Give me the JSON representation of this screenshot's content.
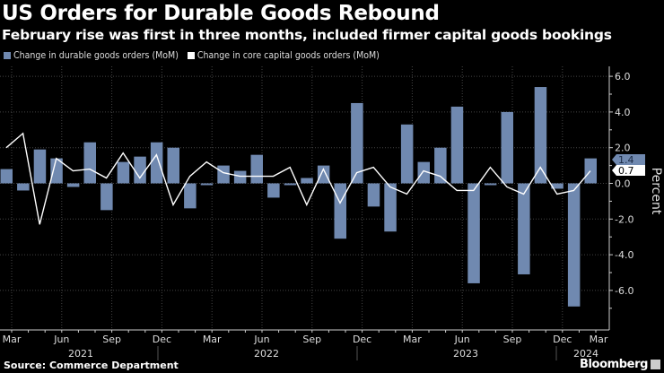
{
  "title": "US Orders for Durable Goods Rebound",
  "subtitle": "February rise was first in three months, included firmer capital goods bookings",
  "source": "Source: Commerce Department",
  "brand": "Bloomberg",
  "chart_data": {
    "type": "bar+line",
    "ylabel": "Percent",
    "ylim": [
      -8,
      6.6
    ],
    "yticks": [
      "6.0",
      "4.0",
      "2.0",
      "0.0",
      "-2.0",
      "-4.0",
      "-6.0"
    ],
    "ytick_values": [
      6,
      4,
      2,
      0,
      -2,
      -4,
      -6
    ],
    "grid": true,
    "legend_position": "top-left",
    "x": [
      "2021-03",
      "2021-04",
      "2021-05",
      "2021-06",
      "2021-07",
      "2021-08",
      "2021-09",
      "2021-10",
      "2021-11",
      "2021-12",
      "2022-01",
      "2022-02",
      "2022-03",
      "2022-04",
      "2022-05",
      "2022-06",
      "2022-07",
      "2022-08",
      "2022-09",
      "2022-10",
      "2022-11",
      "2022-12",
      "2023-01",
      "2023-02",
      "2023-03",
      "2023-04",
      "2023-05",
      "2023-06",
      "2023-07",
      "2023-08",
      "2023-09",
      "2023-10",
      "2023-11",
      "2023-12",
      "2024-01",
      "2024-02"
    ],
    "xtick_labels": [
      "Mar",
      "Jun",
      "Sep",
      "Dec",
      "Mar",
      "Jun",
      "Sep",
      "Dec",
      "Mar",
      "Jun",
      "Sep",
      "Dec",
      "Mar"
    ],
    "year_labels": [
      "2021",
      "2022",
      "2023",
      "2024"
    ],
    "series": [
      {
        "name": "Change in durable goods orders (MoM)",
        "kind": "bar",
        "color": "#7089b0",
        "values": [
          0.8,
          -0.4,
          1.9,
          1.4,
          -0.2,
          2.3,
          -1.5,
          1.2,
          1.5,
          2.3,
          2.0,
          -1.4,
          -0.1,
          1.0,
          0.7,
          1.6,
          -0.8,
          -0.1,
          0.3,
          1.0,
          -3.1,
          4.5,
          -1.3,
          -2.7,
          3.3,
          1.2,
          2.0,
          4.3,
          -5.6,
          -0.1,
          4.0,
          -5.1,
          5.4,
          -0.3,
          -6.9,
          1.4
        ],
        "last_label": "1.4"
      },
      {
        "name": "Change in core capital goods orders (MoM)",
        "kind": "line",
        "color": "#ffffff",
        "values": [
          2.0,
          2.8,
          -2.3,
          1.4,
          0.7,
          0.8,
          0.3,
          1.7,
          0.3,
          1.6,
          -1.2,
          0.4,
          1.2,
          0.6,
          0.4,
          0.4,
          0.4,
          0.9,
          -1.2,
          0.8,
          -1.1,
          0.6,
          0.9,
          -0.2,
          -0.6,
          0.7,
          0.4,
          -0.4,
          -0.4,
          0.9,
          -0.2,
          -0.6,
          0.9,
          -0.6,
          -0.4,
          0.7
        ],
        "last_label": "0.7"
      }
    ]
  }
}
